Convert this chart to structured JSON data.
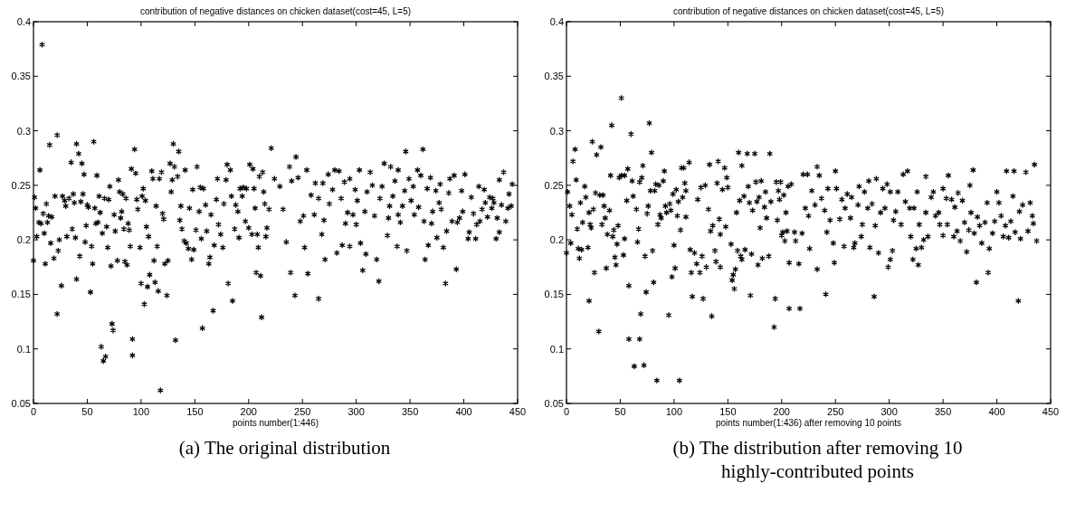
{
  "chart_data": [
    {
      "type": "scatter",
      "title": "contribution of negative distances on chicken dataset(cost=45, L=5)",
      "xlabel": "points number(1:446)",
      "annotations": [
        "(a) The original distribution"
      ],
      "xlim": [
        0,
        450
      ],
      "ylim": [
        0.05,
        0.4
      ],
      "xticks": [
        0,
        50,
        100,
        150,
        200,
        250,
        300,
        350,
        400,
        450
      ],
      "yticks": [
        0.05,
        0.1,
        0.15,
        0.2,
        0.25,
        0.3,
        0.35,
        0.4
      ],
      "marker": "cross",
      "series": [
        {
          "color": "#000000",
          "x": [
            0,
            1,
            2,
            3,
            5,
            6,
            7,
            8,
            9,
            10,
            11,
            12,
            13,
            14,
            15,
            16,
            17,
            19,
            20,
            22,
            22,
            23,
            24,
            26,
            27,
            29,
            30,
            31,
            33,
            35,
            36,
            37,
            38,
            39,
            40,
            40,
            42,
            43,
            44,
            45,
            46,
            47,
            48,
            49,
            50,
            51,
            53,
            54,
            55,
            56,
            57,
            58,
            59,
            60,
            61,
            62,
            63,
            64,
            65,
            66,
            67,
            68,
            69,
            70,
            71,
            72,
            73,
            74,
            75,
            76,
            78,
            79,
            80,
            81,
            82,
            83,
            84,
            85,
            86,
            87,
            88,
            89,
            90,
            91,
            92,
            92,
            94,
            95,
            96,
            97,
            99,
            100,
            101,
            102,
            103,
            104,
            105,
            106,
            107,
            108,
            110,
            111,
            112,
            113,
            114,
            115,
            116,
            117,
            118,
            119,
            120,
            121,
            122,
            124,
            125,
            127,
            128,
            129,
            130,
            131,
            132,
            134,
            135,
            136,
            137,
            138,
            140,
            141,
            142,
            144,
            145,
            147,
            148,
            149,
            151,
            152,
            154,
            155,
            156,
            157,
            158,
            160,
            161,
            163,
            164,
            165,
            167,
            168,
            170,
            171,
            172,
            174,
            176,
            177,
            179,
            180,
            181,
            183,
            184,
            185,
            187,
            188,
            190,
            191,
            192,
            194,
            195,
            197,
            198,
            200,
            201,
            203,
            204,
            205,
            206,
            207,
            208,
            209,
            210,
            211,
            212,
            213,
            214,
            215,
            216,
            217,
            219,
            221,
            224,
            229,
            232,
            235,
            238,
            239,
            240,
            243,
            244,
            246,
            248,
            251,
            252,
            254,
            255,
            258,
            261,
            262,
            265,
            265,
            268,
            269,
            270,
            271,
            274,
            275,
            278,
            280,
            282,
            284,
            286,
            287,
            289,
            290,
            292,
            294,
            294,
            297,
            299,
            300,
            301,
            303,
            304,
            306,
            308,
            309,
            310,
            313,
            315,
            317,
            319,
            321,
            322,
            324,
            326,
            329,
            330,
            331,
            332,
            334,
            336,
            338,
            339,
            339,
            341,
            343,
            345,
            346,
            347,
            349,
            351,
            353,
            354,
            357,
            358,
            360,
            362,
            363,
            364,
            366,
            367,
            369,
            370,
            371,
            374,
            375,
            377,
            378,
            379,
            381,
            383,
            384,
            386,
            387,
            389,
            391,
            393,
            394,
            396,
            398,
            399,
            401,
            404,
            405,
            407,
            409,
            411,
            412,
            414,
            415,
            417,
            419,
            420,
            422,
            424,
            426,
            427,
            428,
            430,
            431,
            433,
            433,
            435,
            437,
            439,
            441,
            442,
            444,
            445
          ],
          "values": [
            0.181,
            0.239,
            0.229,
            0.203,
            0.216,
            0.264,
            0.215,
            0.379,
            0.224,
            0.206,
            0.178,
            0.233,
            0.216,
            0.222,
            0.287,
            0.197,
            0.221,
            0.183,
            0.24,
            0.296,
            0.132,
            0.19,
            0.2,
            0.158,
            0.24,
            0.236,
            0.231,
            0.203,
            0.238,
            0.271,
            0.21,
            0.242,
            0.234,
            0.202,
            0.288,
            0.164,
            0.279,
            0.185,
            0.235,
            0.27,
            0.242,
            0.26,
            0.198,
            0.213,
            0.232,
            0.23,
            0.152,
            0.194,
            0.178,
            0.29,
            0.229,
            0.215,
            0.259,
            0.216,
            0.24,
            0.225,
            0.102,
            0.206,
            0.089,
            0.238,
            0.093,
            0.212,
            0.193,
            0.237,
            0.249,
            0.176,
            0.123,
            0.117,
            0.223,
            0.208,
            0.181,
            0.255,
            0.244,
            0.22,
            0.226,
            0.242,
            0.21,
            0.18,
            0.238,
            0.177,
            0.215,
            0.209,
            0.194,
            0.265,
            0.109,
            0.094,
            0.283,
            0.261,
            0.237,
            0.228,
            0.193,
            0.16,
            0.24,
            0.247,
            0.141,
            0.236,
            0.212,
            0.157,
            0.203,
            0.168,
            0.263,
            0.256,
            0.181,
            0.161,
            0.231,
            0.194,
            0.153,
            0.256,
            0.062,
            0.262,
            0.224,
            0.219,
            0.178,
            0.149,
            0.181,
            0.27,
            0.244,
            0.255,
            0.288,
            0.267,
            0.108,
            0.258,
            0.281,
            0.218,
            0.231,
            0.21,
            0.199,
            0.264,
            0.197,
            0.192,
            0.229,
            0.182,
            0.246,
            0.191,
            0.209,
            0.267,
            0.226,
            0.248,
            0.201,
            0.119,
            0.247,
            0.232,
            0.208,
            0.178,
            0.184,
            0.223,
            0.135,
            0.195,
            0.237,
            0.256,
            0.214,
            0.205,
            0.193,
            0.233,
            0.255,
            0.269,
            0.16,
            0.264,
            0.24,
            0.144,
            0.21,
            0.232,
            0.226,
            0.202,
            0.247,
            0.24,
            0.248,
            0.217,
            0.247,
            0.211,
            0.269,
            0.205,
            0.265,
            0.247,
            0.229,
            0.17,
            0.205,
            0.193,
            0.258,
            0.167,
            0.129,
            0.262,
            0.244,
            0.233,
            0.203,
            0.211,
            0.228,
            0.284,
            0.256,
            0.249,
            0.228,
            0.198,
            0.267,
            0.17,
            0.254,
            0.149,
            0.276,
            0.257,
            0.217,
            0.222,
            0.193,
            0.264,
            0.169,
            0.241,
            0.223,
            0.252,
            0.238,
            0.146,
            0.205,
            0.252,
            0.218,
            0.182,
            0.26,
            0.233,
            0.246,
            0.264,
            0.188,
            0.263,
            0.238,
            0.195,
            0.253,
            0.215,
            0.225,
            0.256,
            0.194,
            0.223,
            0.246,
            0.214,
            0.236,
            0.264,
            0.197,
            0.172,
            0.226,
            0.187,
            0.244,
            0.262,
            0.25,
            0.222,
            0.182,
            0.162,
            0.238,
            0.249,
            0.27,
            0.204,
            0.22,
            0.231,
            0.267,
            0.24,
            0.254,
            0.194,
            0.223,
            0.264,
            0.216,
            0.231,
            0.245,
            0.281,
            0.19,
            0.256,
            0.236,
            0.249,
            0.223,
            0.264,
            0.23,
            0.259,
            0.283,
            0.217,
            0.182,
            0.247,
            0.195,
            0.257,
            0.215,
            0.226,
            0.245,
            0.202,
            0.234,
            0.251,
            0.228,
            0.193,
            0.16,
            0.208,
            0.243,
            0.256,
            0.217,
            0.259,
            0.173,
            0.216,
            0.22,
            0.245,
            0.226,
            0.26,
            0.201,
            0.207,
            0.239,
            0.224,
            0.201,
            0.214,
            0.249,
            0.217,
            0.228,
            0.246,
            0.234,
            0.221,
            0.239,
            0.229,
            0.238,
            0.234,
            0.201,
            0.22,
            0.207,
            0.255,
            0.232,
            0.262,
            0.217,
            0.229,
            0.242,
            0.231,
            0.251
          ]
        }
      ]
    },
    {
      "type": "scatter",
      "title": "contribution of negative distances on chicken dataset(cost=45, L=5)",
      "xlabel": "points number(1:436) after removing 10 points",
      "annotations": [
        "(b) The distribution after removing 10 highly-contributed points"
      ],
      "xlim": [
        0,
        450
      ],
      "ylim": [
        0.05,
        0.4
      ],
      "xticks": [
        0,
        50,
        100,
        150,
        200,
        250,
        300,
        350,
        400,
        450
      ],
      "yticks": [
        0.05,
        0.1,
        0.15,
        0.2,
        0.25,
        0.3,
        0.35,
        0.4
      ],
      "marker": "cross",
      "series": [
        {
          "color": "#000000",
          "x": [
            0,
            1,
            3,
            4,
            5,
            6,
            8,
            9,
            10,
            11,
            12,
            13,
            14,
            15,
            17,
            18,
            20,
            21,
            21,
            22,
            23,
            24,
            25,
            26,
            27,
            28,
            30,
            31,
            32,
            33,
            34,
            35,
            36,
            37,
            38,
            40,
            41,
            42,
            43,
            44,
            45,
            46,
            47,
            48,
            49,
            51,
            51,
            53,
            54,
            54,
            56,
            57,
            58,
            58,
            60,
            61,
            62,
            63,
            65,
            66,
            67,
            68,
            68,
            69,
            70,
            71,
            72,
            73,
            74,
            75,
            76,
            77,
            78,
            79,
            80,
            81,
            82,
            83,
            84,
            85,
            86,
            87,
            88,
            90,
            91,
            92,
            93,
            95,
            96,
            97,
            98,
            99,
            100,
            101,
            102,
            103,
            104,
            105,
            106,
            107,
            108,
            109,
            110,
            111,
            111,
            114,
            115,
            116,
            117,
            119,
            121,
            122,
            124,
            125,
            126,
            127,
            129,
            130,
            132,
            133,
            134,
            135,
            136,
            138,
            139,
            140,
            141,
            142,
            143,
            143,
            145,
            147,
            148,
            149,
            150,
            153,
            154,
            155,
            156,
            157,
            158,
            159,
            160,
            161,
            162,
            163,
            163,
            165,
            166,
            168,
            169,
            170,
            171,
            172,
            173,
            175,
            176,
            177,
            178,
            179,
            180,
            181,
            182,
            184,
            185,
            186,
            188,
            189,
            190,
            193,
            194,
            195,
            196,
            197,
            198,
            199,
            200,
            201,
            202,
            203,
            204,
            205,
            206,
            207,
            207,
            209,
            212,
            213,
            216,
            217,
            219,
            220,
            222,
            224,
            225,
            226,
            228,
            231,
            233,
            233,
            235,
            237,
            240,
            241,
            242,
            243,
            245,
            248,
            249,
            250,
            251,
            254,
            256,
            258,
            259,
            261,
            264,
            265,
            267,
            268,
            271,
            272,
            274,
            275,
            277,
            280,
            281,
            282,
            284,
            286,
            287,
            288,
            290,
            292,
            294,
            296,
            298,
            299,
            301,
            301,
            303,
            304,
            306,
            308,
            311,
            313,
            315,
            317,
            319,
            320,
            322,
            323,
            325,
            326,
            327,
            328,
            330,
            332,
            334,
            334,
            336,
            339,
            341,
            343,
            346,
            347,
            350,
            350,
            353,
            354,
            355,
            358,
            360,
            361,
            363,
            364,
            366,
            368,
            370,
            372,
            374,
            375,
            376,
            378,
            379,
            381,
            382,
            384,
            386,
            389,
            391,
            392,
            393,
            396,
            398,
            400,
            402,
            404,
            406,
            408,
            409,
            411,
            413,
            415,
            416,
            417,
            420,
            421,
            422,
            424,
            427,
            429,
            431,
            433,
            434,
            435,
            437
          ],
          "values": [
            0.188,
            0.244,
            0.231,
            0.197,
            0.223,
            0.272,
            0.283,
            0.255,
            0.21,
            0.192,
            0.183,
            0.234,
            0.191,
            0.216,
            0.249,
            0.239,
            0.193,
            0.225,
            0.144,
            0.214,
            0.211,
            0.29,
            0.228,
            0.17,
            0.243,
            0.278,
            0.116,
            0.241,
            0.285,
            0.214,
            0.241,
            0.231,
            0.22,
            0.174,
            0.205,
            0.227,
            0.259,
            0.305,
            0.203,
            0.209,
            0.184,
            0.177,
            0.196,
            0.213,
            0.257,
            0.259,
            0.33,
            0.186,
            0.259,
            0.201,
            0.236,
            0.265,
            0.109,
            0.158,
            0.297,
            0.254,
            0.24,
            0.084,
            0.228,
            0.198,
            0.21,
            0.253,
            0.109,
            0.132,
            0.257,
            0.268,
            0.085,
            0.185,
            0.152,
            0.224,
            0.231,
            0.307,
            0.245,
            0.28,
            0.19,
            0.161,
            0.245,
            0.251,
            0.071,
            0.214,
            0.25,
            0.223,
            0.22,
            0.254,
            0.263,
            0.231,
            0.225,
            0.131,
            0.233,
            0.227,
            0.166,
            0.242,
            0.195,
            0.174,
            0.246,
            0.222,
            0.235,
            0.071,
            0.209,
            0.266,
            0.239,
            0.266,
            0.252,
            0.245,
            0.221,
            0.271,
            0.191,
            0.17,
            0.148,
            0.188,
            0.178,
            0.237,
            0.17,
            0.248,
            0.185,
            0.146,
            0.25,
            0.175,
            0.228,
            0.269,
            0.208,
            0.13,
            0.213,
            0.19,
            0.18,
            0.252,
            0.272,
            0.219,
            0.205,
            0.175,
            0.246,
            0.266,
            0.212,
            0.257,
            0.248,
            0.196,
            0.163,
            0.168,
            0.155,
            0.173,
            0.225,
            0.19,
            0.28,
            0.236,
            0.185,
            0.268,
            0.182,
            0.24,
            0.191,
            0.279,
            0.249,
            0.234,
            0.149,
            0.187,
            0.227,
            0.279,
            0.253,
            0.235,
            0.177,
            0.239,
            0.211,
            0.254,
            0.183,
            0.23,
            0.244,
            0.22,
            0.185,
            0.279,
            0.235,
            0.12,
            0.146,
            0.253,
            0.218,
            0.245,
            0.237,
            0.253,
            0.204,
            0.207,
            0.241,
            0.199,
            0.225,
            0.208,
            0.249,
            0.179,
            0.137,
            0.251,
            0.207,
            0.199,
            0.178,
            0.137,
            0.206,
            0.26,
            0.229,
            0.26,
            0.222,
            0.192,
            0.245,
            0.232,
            0.267,
            0.173,
            0.259,
            0.238,
            0.227,
            0.15,
            0.207,
            0.247,
            0.218,
            0.197,
            0.179,
            0.263,
            0.247,
            0.219,
            0.237,
            0.194,
            0.229,
            0.242,
            0.22,
            0.239,
            0.193,
            0.197,
            0.232,
            0.249,
            0.203,
            0.214,
            0.244,
            0.229,
            0.254,
            0.193,
            0.233,
            0.148,
            0.213,
            0.256,
            0.188,
            0.225,
            0.247,
            0.229,
            0.251,
            0.175,
            0.182,
            0.244,
            0.19,
            0.218,
            0.226,
            0.244,
            0.214,
            0.26,
            0.235,
            0.263,
            0.229,
            0.203,
            0.182,
            0.229,
            0.192,
            0.244,
            0.177,
            0.214,
            0.193,
            0.2,
            0.258,
            0.225,
            0.203,
            0.239,
            0.244,
            0.222,
            0.225,
            0.214,
            0.247,
            0.204,
            0.238,
            0.214,
            0.259,
            0.237,
            0.203,
            0.23,
            0.208,
            0.243,
            0.199,
            0.236,
            0.216,
            0.189,
            0.209,
            0.25,
            0.225,
            0.264,
            0.206,
            0.161,
            0.221,
            0.213,
            0.197,
            0.216,
            0.234,
            0.17,
            0.192,
            0.206,
            0.217,
            0.244,
            0.234,
            0.222,
            0.203,
            0.213,
            0.263,
            0.202,
            0.217,
            0.24,
            0.263,
            0.207,
            0.144,
            0.226,
            0.201,
            0.232,
            0.262,
            0.208,
            0.234,
            0.222,
            0.215,
            0.269,
            0.199
          ]
        }
      ]
    }
  ]
}
